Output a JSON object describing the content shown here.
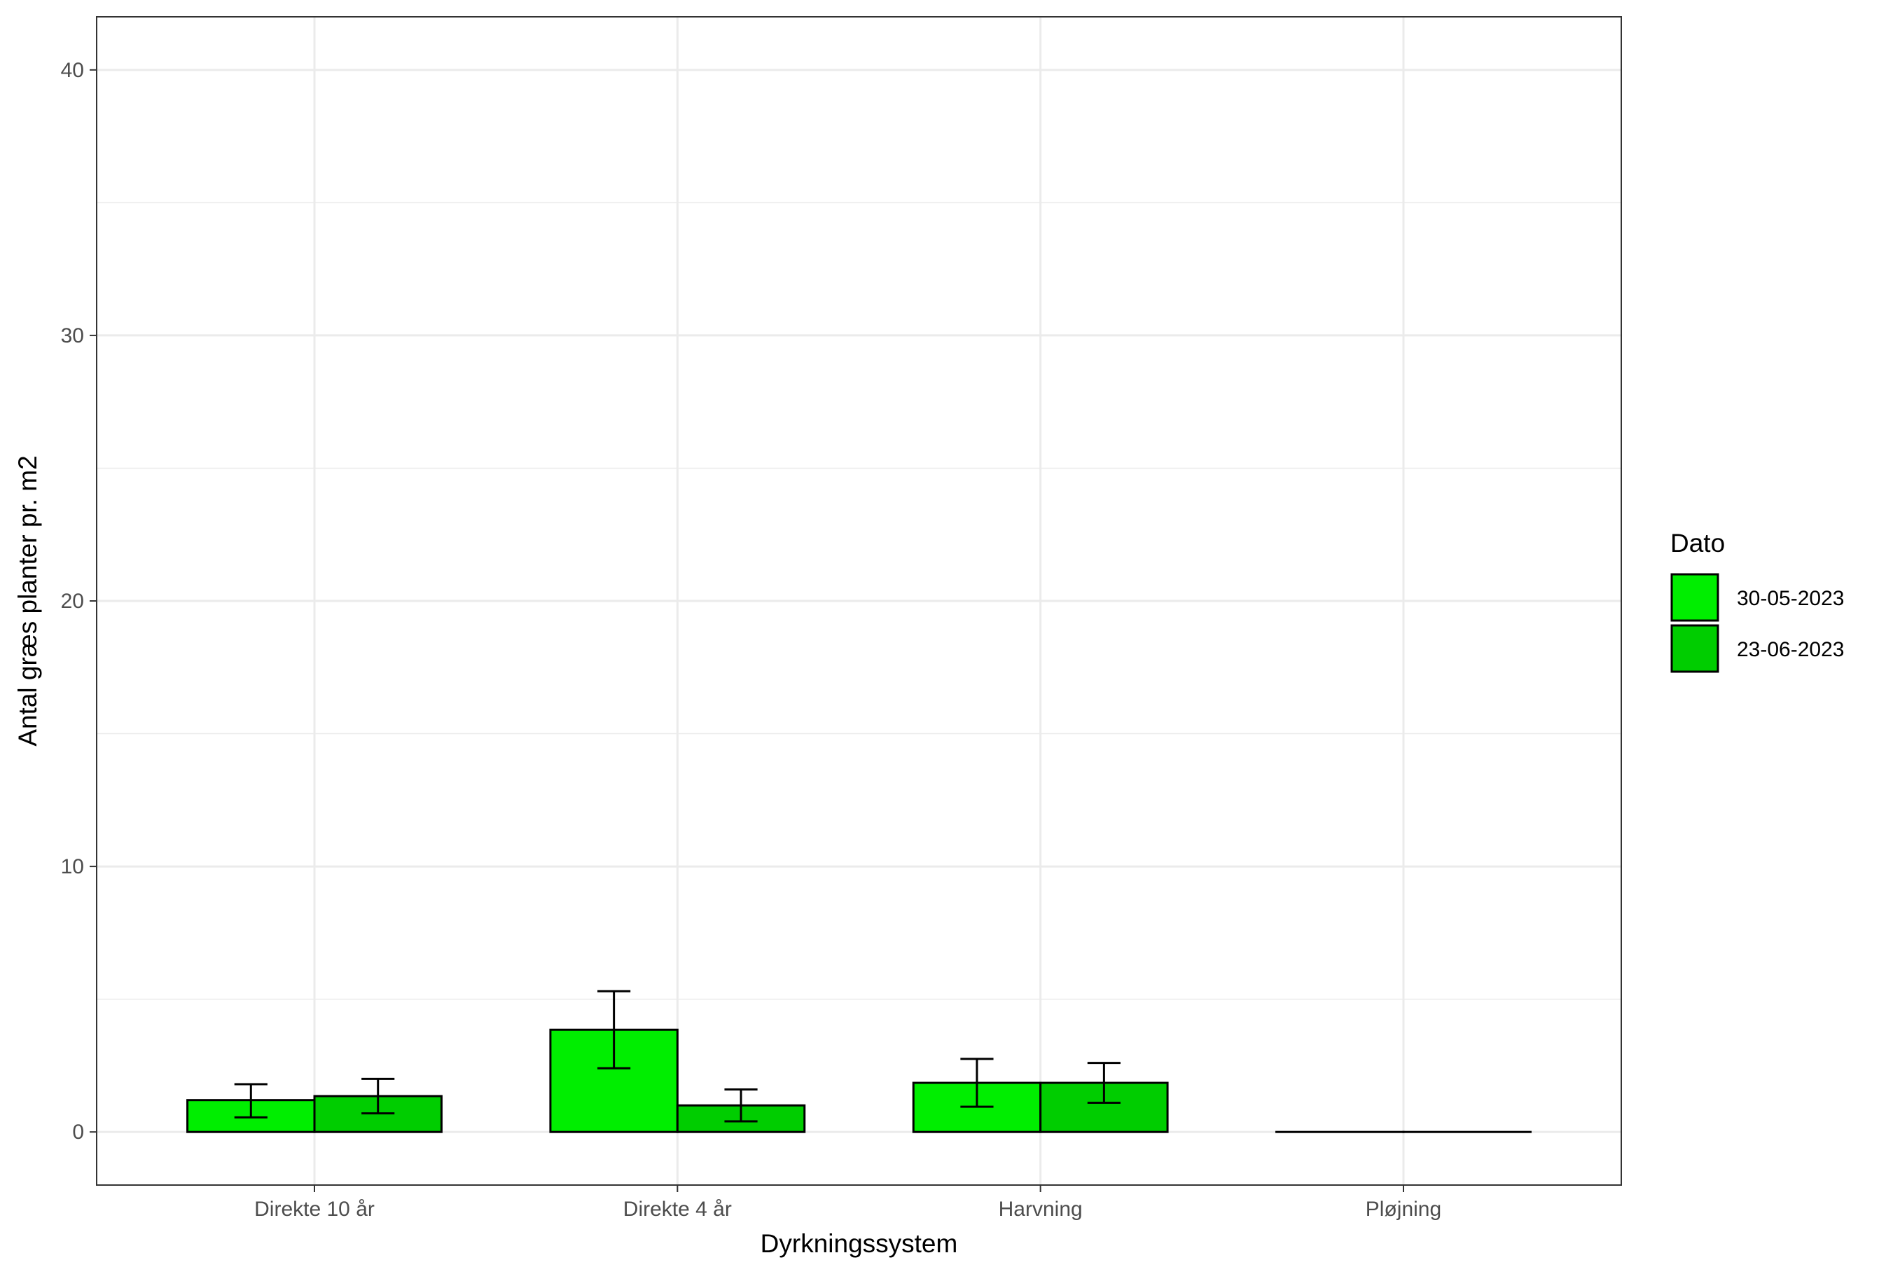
{
  "chart_data": {
    "type": "bar",
    "title": "",
    "xlabel": "Dyrkningssystem",
    "ylabel": "Antal græs planter pr. m2",
    "ylim": [
      -2,
      42
    ],
    "yticks": [
      0,
      10,
      20,
      30,
      40
    ],
    "grid": true,
    "legend_position": "right",
    "legend_title": "Dato",
    "categories": [
      "Direkte 10 år",
      "Direkte 4 år",
      "Harvning",
      "Pløjning"
    ],
    "series": [
      {
        "name": "30-05-2023",
        "color": "#00EE00",
        "values": [
          1.2,
          3.85,
          1.85,
          0.0
        ],
        "error_low": [
          0.55,
          2.4,
          0.95,
          0.0
        ],
        "error_high": [
          1.8,
          5.3,
          2.75,
          0.0
        ]
      },
      {
        "name": "23-06-2023",
        "color": "#00CD00",
        "values": [
          1.35,
          1.0,
          1.85,
          0.0
        ],
        "error_low": [
          0.7,
          0.4,
          1.1,
          0.0
        ],
        "error_high": [
          2.0,
          1.6,
          2.6,
          0.0
        ]
      }
    ]
  }
}
